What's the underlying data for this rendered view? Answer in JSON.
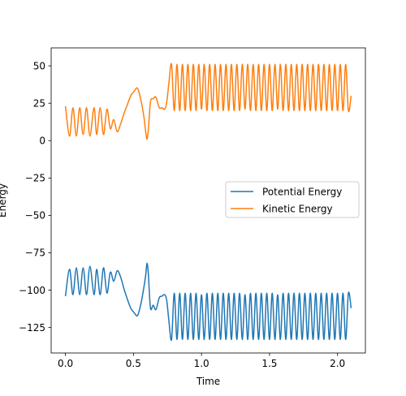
{
  "chart_data": {
    "type": "line",
    "xlabel": "Time",
    "ylabel": "Energy",
    "xlim": [
      -0.105,
      2.205
    ],
    "ylim": [
      -142,
      62
    ],
    "xticks": [
      0.0,
      0.5,
      1.0,
      1.5,
      2.0
    ],
    "xtick_labels": [
      "0.0",
      "0.5",
      "1.0",
      "1.5",
      "2.0"
    ],
    "yticks": [
      50,
      25,
      0,
      -25,
      -50,
      -75,
      -100,
      -125
    ],
    "ytick_labels": [
      "50",
      "25",
      "0",
      "−25",
      "−50",
      "−75",
      "−100",
      "−125"
    ],
    "grid": false,
    "legend_position": "center right",
    "series": [
      {
        "name": "Potential Energy",
        "color": "#1f77b4",
        "x": [
          0.0,
          0.03,
          0.055,
          0.08,
          0.105,
          0.13,
          0.155,
          0.18,
          0.21,
          0.23,
          0.255,
          0.28,
          0.305,
          0.33,
          0.355,
          0.38,
          0.405,
          0.43,
          0.455,
          0.48,
          0.505,
          0.53,
          0.555,
          0.575,
          0.59,
          0.6,
          0.61,
          0.625,
          0.645,
          0.665,
          0.69,
          0.71,
          0.73,
          0.745,
          0.76,
          0.78,
          0.8,
          0.82,
          0.84,
          0.86,
          0.88,
          0.9,
          0.92,
          0.94,
          0.96,
          0.98,
          1.0,
          1.02,
          1.04,
          1.06,
          1.08,
          1.1,
          1.12,
          1.14,
          1.16,
          1.18,
          1.2,
          1.22,
          1.24,
          1.26,
          1.28,
          1.3,
          1.32,
          1.34,
          1.36,
          1.38,
          1.4,
          1.42,
          1.44,
          1.46,
          1.48,
          1.5,
          1.52,
          1.54,
          1.56,
          1.58,
          1.6,
          1.62,
          1.64,
          1.66,
          1.68,
          1.7,
          1.72,
          1.74,
          1.76,
          1.78,
          1.8,
          1.82,
          1.84,
          1.86,
          1.88,
          1.9,
          1.92,
          1.94,
          1.96,
          1.98,
          2.0,
          2.02,
          2.04,
          2.06,
          2.08,
          2.1
        ],
        "y": [
          -104,
          -86,
          -103,
          -85,
          -103,
          -85,
          -103,
          -84,
          -103,
          -86,
          -103,
          -85,
          -102,
          -88,
          -94,
          -87,
          -91,
          -99,
          -106,
          -112,
          -115,
          -117,
          -109,
          -99,
          -90,
          -82,
          -90,
          -112,
          -110,
          -113,
          -105,
          -104,
          -103,
          -107,
          -120,
          -133,
          -102,
          -133,
          -102,
          -133,
          -102,
          -133,
          -102,
          -133,
          -102,
          -133,
          -103,
          -133,
          -102,
          -133,
          -102,
          -133,
          -102,
          -133,
          -102,
          -133,
          -102,
          -133,
          -102,
          -133,
          -102,
          -133,
          -103,
          -133,
          -102,
          -133,
          -102,
          -133,
          -102,
          -133,
          -102,
          -133,
          -102,
          -133,
          -103,
          -133,
          -102,
          -133,
          -102,
          -133,
          -102,
          -133,
          -102,
          -133,
          -102,
          -133,
          -102,
          -133,
          -102,
          -133,
          -102,
          -133,
          -102,
          -133,
          -102,
          -133,
          -102,
          -133,
          -102,
          -133,
          -102,
          -112
        ]
      },
      {
        "name": "Kinetic Energy",
        "color": "#ff7f0e",
        "x": [
          0.0,
          0.03,
          0.055,
          0.08,
          0.105,
          0.13,
          0.155,
          0.18,
          0.21,
          0.23,
          0.255,
          0.28,
          0.305,
          0.33,
          0.355,
          0.38,
          0.405,
          0.43,
          0.455,
          0.48,
          0.505,
          0.53,
          0.555,
          0.575,
          0.59,
          0.6,
          0.61,
          0.625,
          0.645,
          0.665,
          0.69,
          0.71,
          0.73,
          0.745,
          0.76,
          0.78,
          0.8,
          0.82,
          0.84,
          0.86,
          0.88,
          0.9,
          0.92,
          0.94,
          0.96,
          0.98,
          1.0,
          1.02,
          1.04,
          1.06,
          1.08,
          1.1,
          1.12,
          1.14,
          1.16,
          1.18,
          1.2,
          1.22,
          1.24,
          1.26,
          1.28,
          1.3,
          1.32,
          1.34,
          1.36,
          1.38,
          1.4,
          1.42,
          1.44,
          1.46,
          1.48,
          1.5,
          1.52,
          1.54,
          1.56,
          1.58,
          1.6,
          1.62,
          1.64,
          1.66,
          1.68,
          1.7,
          1.72,
          1.74,
          1.76,
          1.78,
          1.8,
          1.82,
          1.84,
          1.86,
          1.88,
          1.9,
          1.92,
          1.94,
          1.96,
          1.98,
          2.0,
          2.02,
          2.04,
          2.06,
          2.08,
          2.1
        ],
        "y": [
          23,
          3,
          22,
          3,
          22,
          4,
          22,
          3,
          22,
          4,
          22,
          4,
          21,
          8,
          14,
          6,
          11,
          18,
          24,
          30,
          33,
          35,
          27,
          17,
          6,
          1,
          8,
          26,
          28,
          29,
          22,
          22,
          21,
          26,
          38,
          51,
          20,
          51,
          20,
          51,
          20,
          51,
          20,
          51,
          20,
          51,
          21,
          51,
          20,
          51,
          20,
          51,
          20,
          51,
          20,
          51,
          20,
          51,
          20,
          51,
          20,
          51,
          21,
          51,
          20,
          51,
          20,
          51,
          20,
          51,
          20,
          51,
          20,
          51,
          21,
          51,
          20,
          51,
          20,
          51,
          20,
          51,
          20,
          51,
          20,
          51,
          20,
          51,
          20,
          51,
          20,
          51,
          20,
          51,
          20,
          51,
          20,
          51,
          20,
          51,
          20,
          30
        ]
      }
    ]
  }
}
